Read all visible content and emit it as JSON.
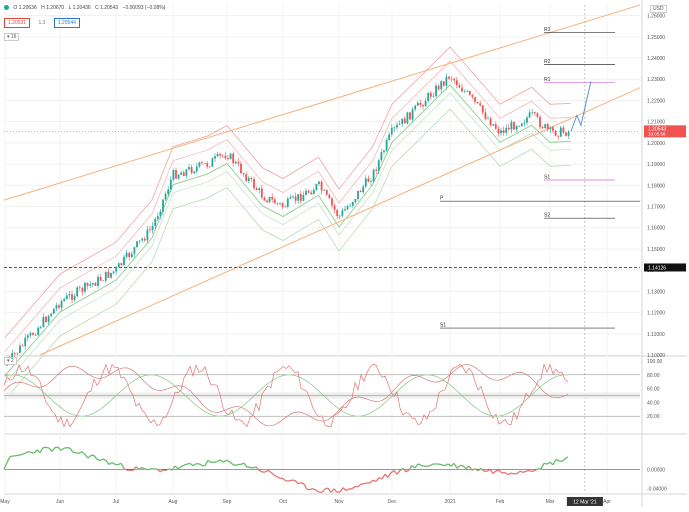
{
  "header": {
    "ohlc": [
      "O 1.20636",
      "H 1.20670",
      "L 1.20436",
      "C 1.20543",
      "−0.00093 (−0.08%)"
    ],
    "tag_bid": "1.20531",
    "tag_spread": "1.3",
    "tag_ask": "1.20544",
    "interval_tag": "16",
    "currency": "USD",
    "osc_tag": "2"
  },
  "colors": {
    "bull": "#26a69a",
    "bear": "#ef5350",
    "channel": "#f7b27a",
    "bands": "#f4a3a3",
    "bands_inner": "#b7dcb7",
    "ma": "#7fc97f",
    "pivot": "#333333",
    "pivot_pink": "#d16ad9",
    "current_price_bg": "#ef5350",
    "dark_level_bg": "#111111"
  },
  "chart_data": [
    {
      "type": "candlestick",
      "title": "",
      "y_ticks": [
        "1.26000",
        "1.25000",
        "1.24000",
        "1.23000",
        "1.22000",
        "1.21000",
        "1.20000",
        "1.19000",
        "1.18000",
        "1.17000",
        "1.16000",
        "1.15000",
        "1.14000",
        "1.13000",
        "1.12000",
        "1.11000",
        "1.10000"
      ],
      "ylim": [
        1.1,
        1.265
      ],
      "x_ticks": [
        "May",
        "Jun",
        "Jul",
        "Aug",
        "Sep",
        "Oct",
        "Nov",
        "Dec",
        "2021",
        "Feb",
        "Mar",
        "Apr"
      ],
      "current_price_label": "1.20543",
      "current_price_sub": "16:05:56",
      "current_price": 1.20543,
      "dark_level_label": "1.14126",
      "dark_level": 1.14126,
      "pivots": [
        {
          "label": "R3",
          "value": 1.252
        },
        {
          "label": "R2",
          "value": 1.237
        },
        {
          "label": "R1",
          "value": 1.2285
        },
        {
          "label": "S1",
          "value": 1.1825
        },
        {
          "label": "P",
          "value": 1.1725
        },
        {
          "label": "S2",
          "value": 1.1645
        },
        {
          "label": "S1",
          "value": 1.1127
        }
      ],
      "x_cursor_label": "12 Mar '21",
      "trend": [
        {
          "t": "2020-05",
          "price": 1.095
        },
        {
          "t": "2020-06",
          "price": 1.125
        },
        {
          "t": "2020-07",
          "price": 1.14
        },
        {
          "t": "2020-07-20",
          "price": 1.16
        },
        {
          "t": "2020-08",
          "price": 1.185
        },
        {
          "t": "2020-08-20",
          "price": 1.19
        },
        {
          "t": "2020-09",
          "price": 1.195
        },
        {
          "t": "2020-09-20",
          "price": 1.175
        },
        {
          "t": "2020-10",
          "price": 1.17
        },
        {
          "t": "2020-10-20",
          "price": 1.18
        },
        {
          "t": "2020-11",
          "price": 1.165
        },
        {
          "t": "2020-11-20",
          "price": 1.185
        },
        {
          "t": "2020-12",
          "price": 1.205
        },
        {
          "t": "2020-12-20",
          "price": 1.222
        },
        {
          "t": "2021-01",
          "price": 1.232
        },
        {
          "t": "2021-01-20",
          "price": 1.215
        },
        {
          "t": "2021-02",
          "price": 1.205
        },
        {
          "t": "2021-02-20",
          "price": 1.213
        },
        {
          "t": "2021-03",
          "price": 1.205
        },
        {
          "t": "2021-03-12",
          "price": 1.2054
        }
      ]
    },
    {
      "type": "line",
      "title": "",
      "y_ticks": [
        "100.00",
        "80.00",
        "60.00",
        "40.00",
        "20.00"
      ],
      "ylim": [
        0,
        100
      ],
      "levels": [
        80,
        50,
        20
      ]
    },
    {
      "type": "area",
      "title": "",
      "y_ticks": [
        "0.00000",
        "-0.04000"
      ],
      "ylim": [
        -0.05,
        0.07
      ]
    }
  ]
}
